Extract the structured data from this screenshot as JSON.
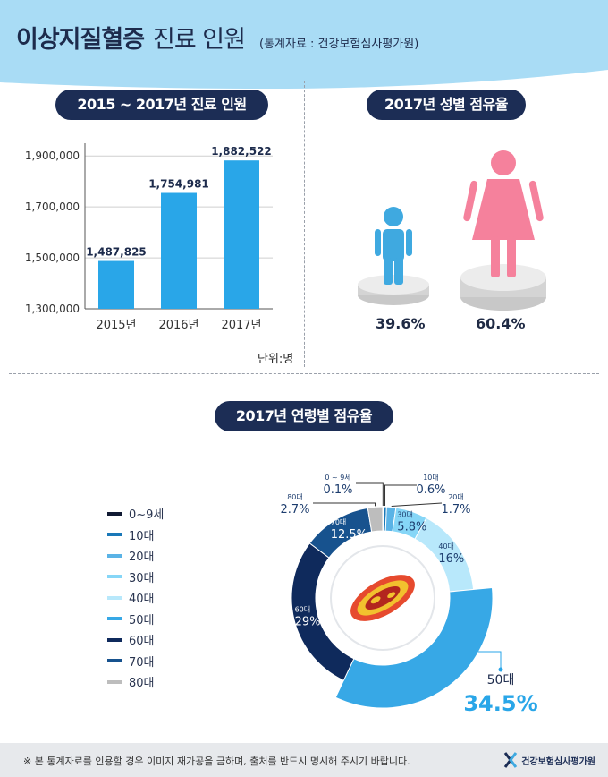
{
  "header": {
    "title_bold": "이상지질혈증",
    "title_light": "진료 인원",
    "source": "(통계자료 : 건강보험심사평가원)"
  },
  "section_titles": {
    "bar_chart": "2015 ~ 2017년 진료 인원",
    "gender": "2017년 성별 점유율",
    "age": "2017년 연령별 점유율"
  },
  "unit_label": "단위:명",
  "gender": {
    "male_percent": "39.6%",
    "female_percent": "60.4%",
    "male_color": "#3fa9e0",
    "female_color": "#f5819c"
  },
  "chart_data": [
    {
      "type": "bar",
      "title": "2015 ~ 2017년 진료 인원",
      "categories": [
        "2015년",
        "2016년",
        "2017년"
      ],
      "values": [
        1487825,
        1754981,
        1882522
      ],
      "value_labels": [
        "1,487,825",
        "1,754,981",
        "1,882,522"
      ],
      "ylim": [
        1300000,
        1950000
      ],
      "yticks": [
        1300000,
        1500000,
        1700000,
        1900000
      ],
      "ytick_labels": [
        "1,300,000",
        "1,500,000",
        "1,700,000",
        "1,900,000"
      ],
      "grid": true,
      "bar_color": "#29a6e8",
      "unit": "단위:명"
    },
    {
      "type": "pie",
      "title": "2017년 연령별 점유율",
      "categories": [
        "0~9세",
        "10대",
        "20대",
        "30대",
        "40대",
        "50대",
        "60대",
        "70대",
        "80대"
      ],
      "values": [
        0.1,
        0.6,
        1.7,
        5.8,
        16,
        34.5,
        29,
        12.5,
        2.7
      ],
      "slice_label_names": [
        "0 ~ 9세",
        "10대",
        "20대",
        "30대",
        "40대",
        "50대",
        "60대",
        "70대",
        "80대"
      ],
      "slice_label_values": [
        "0.1%",
        "0.6%",
        "1.7%",
        "5.8%",
        "16%",
        "34.5%",
        "29%",
        "12.5%",
        "2.7%"
      ],
      "colors": [
        "#111a33",
        "#1a78b8",
        "#5ab3e6",
        "#86d6f7",
        "#b8e8fb",
        "#37a8e6",
        "#0f2a5c",
        "#17528e",
        "#bdbdbd"
      ],
      "legend_position": "left"
    }
  ],
  "footer": {
    "note": "※ 본 통계자료를 인용할 경우 이미지 재가공을 금하며, 출처를 반드시 명시해 주시기 바랍니다.",
    "logo_text": "건강보험심사평가원"
  }
}
